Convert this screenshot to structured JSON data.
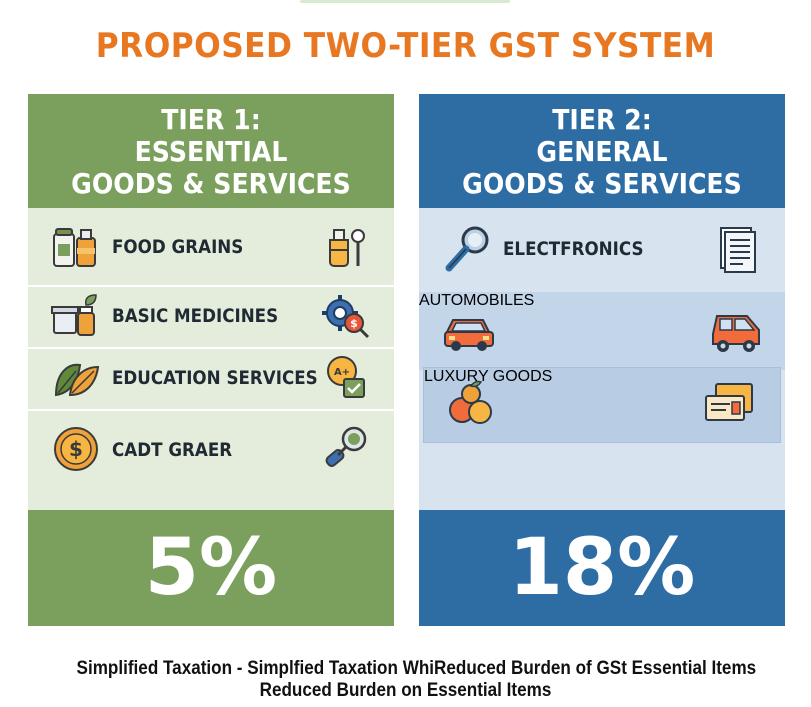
{
  "title": "PROPOSED TWO-TIER GST SYSTEM",
  "colors": {
    "title_orange": "#e87722",
    "tier1_green": "#7ba05e",
    "tier1_bg": "#e4ecdc",
    "tier2_blue": "#2e6da4",
    "tier2_bg": "#d7e3ef"
  },
  "tier1": {
    "header_lines": [
      "TIER 1:",
      "ESSENTIAL",
      "GOODS & SERVICES"
    ],
    "rate": "5%",
    "items": [
      {
        "label": "FOOD GRAINS",
        "icon_left": "jars-icon",
        "icon_right": "flask-icon"
      },
      {
        "label": "BASIC MEDICINES",
        "icon_left": "medicine-icon",
        "icon_right": "gear-icon"
      },
      {
        "label": "EDUCATION SERVICES",
        "icon_left": "leaf-icon",
        "icon_right": "badge-icon"
      },
      {
        "label": "CADT GRAER",
        "icon_left": "coin-icon",
        "icon_right": "magnifier-icon"
      }
    ]
  },
  "tier2": {
    "header_lines": [
      "TIER 2:",
      "GENERAL",
      "GOODS & SERVICES"
    ],
    "rate": "18%",
    "items": [
      {
        "label": "ELECTFRONICS",
        "icon_left": "magnifier-icon",
        "icon_right": "document-icon"
      },
      {
        "label": "AUTOMOBILES",
        "icon_left": "car-icon",
        "icon_right": "car-icon"
      },
      {
        "label": "LUXURY GOODS",
        "icon_left": "fruit-icon",
        "icon_right": "card-icon"
      }
    ]
  },
  "footnote": {
    "line1_a": "Simplified Taxation",
    "line1_b": "- Simplfied Taxation WhiReduced Burden of GSt Essential Items",
    "line2": "Reduced Burden on Essential Items"
  }
}
